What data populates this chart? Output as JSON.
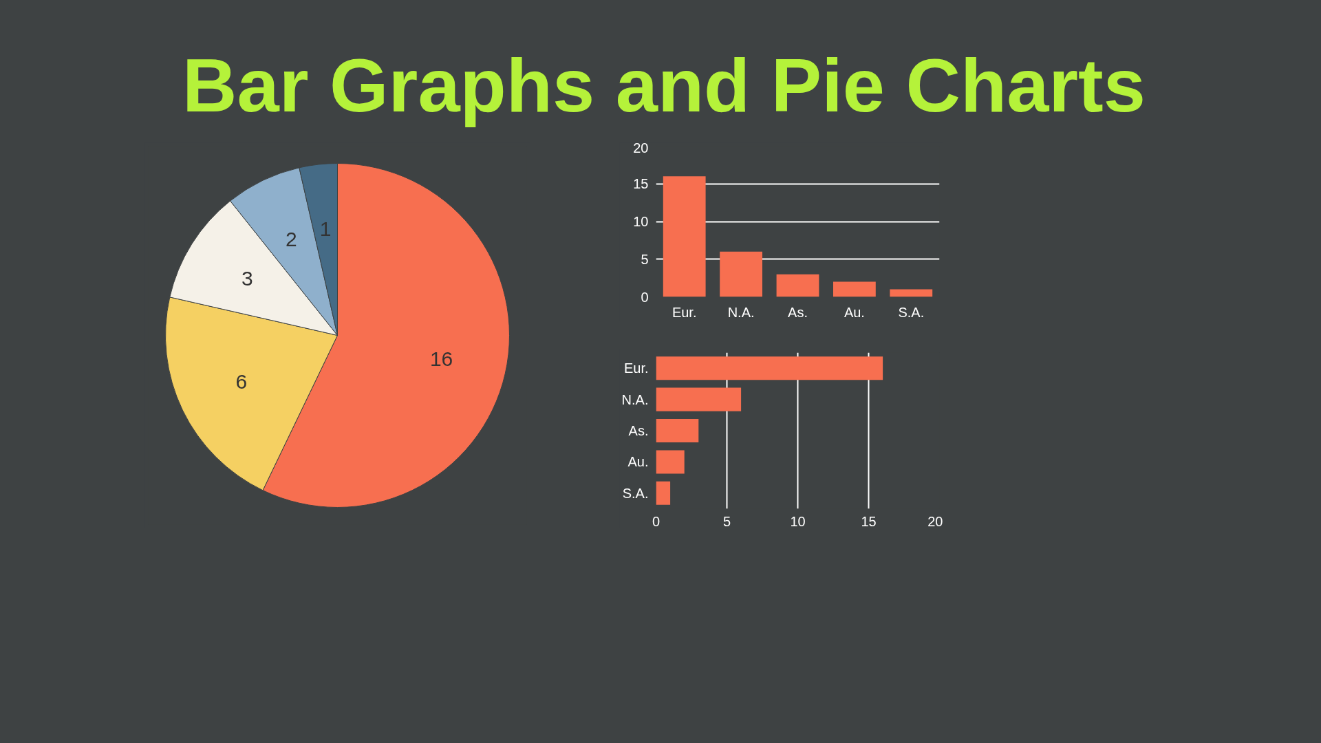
{
  "chart_data": [
    {
      "type": "pie",
      "title": "Bar Graphs and Pie Charts",
      "categories": [
        null,
        null,
        null,
        null,
        null
      ],
      "values": [
        16,
        6,
        3,
        2,
        1
      ],
      "colors": [
        "#f76f50",
        "#f5d062",
        "#f5f1e8",
        "#8fb0cc",
        "#456b86"
      ],
      "data_labels": true
    },
    {
      "type": "bar",
      "categories": [
        "Eur.",
        "N.A.",
        "As.",
        "Au.",
        "S.A."
      ],
      "values": [
        16,
        6,
        3,
        2,
        1
      ],
      "color": "#f76f50",
      "ylim": [
        0,
        20
      ],
      "yticks": [
        0,
        5,
        10,
        15,
        20
      ],
      "grid": "y"
    },
    {
      "type": "bar",
      "orientation": "horizontal",
      "categories": [
        "Eur.",
        "N.A.",
        "As.",
        "Au.",
        "S.A."
      ],
      "values": [
        16,
        6,
        3,
        2,
        1
      ],
      "color": "#f76f50",
      "xlim": [
        0,
        20
      ],
      "xticks": [
        0,
        5,
        10,
        15,
        20
      ],
      "grid": "x"
    }
  ]
}
